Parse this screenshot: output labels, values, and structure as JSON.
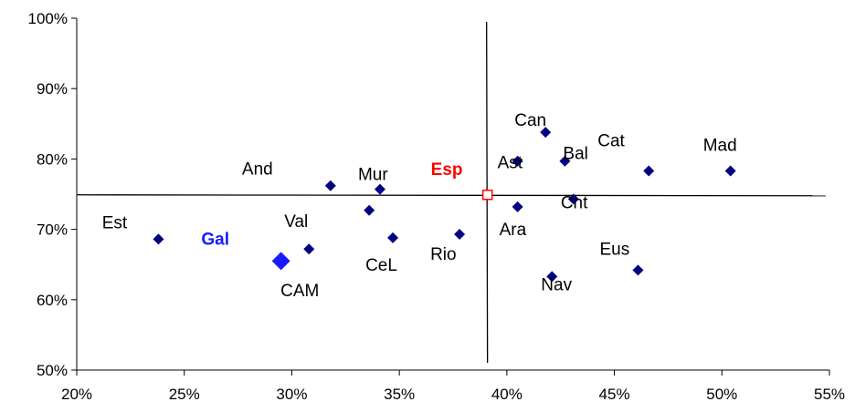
{
  "chart_data": {
    "type": "scatter",
    "title": "",
    "xlabel": "",
    "ylabel": "",
    "xlim": [
      0.2,
      0.55
    ],
    "ylim": [
      0.5,
      1.0
    ],
    "x_ticks": [
      {
        "value": 0.2,
        "label": "20%"
      },
      {
        "value": 0.25,
        "label": "25%"
      },
      {
        "value": 0.3,
        "label": "30%"
      },
      {
        "value": 0.35,
        "label": "35%"
      },
      {
        "value": 0.4,
        "label": "40%"
      },
      {
        "value": 0.45,
        "label": "45%"
      },
      {
        "value": 0.5,
        "label": "50%"
      },
      {
        "value": 0.55,
        "label": "55%"
      }
    ],
    "y_ticks": [
      {
        "value": 0.5,
        "label": "50%"
      },
      {
        "value": 0.6,
        "label": "60%"
      },
      {
        "value": 0.7,
        "label": "70%"
      },
      {
        "value": 0.8,
        "label": "80%"
      },
      {
        "value": 0.9,
        "label": "90%"
      },
      {
        "value": 1.0,
        "label": "100%"
      }
    ],
    "grid": false,
    "legend": "none",
    "reference_lines": {
      "x": 0.391,
      "y": 0.749
    },
    "colors": {
      "point": "#000080",
      "highlight_blue": "#1a1aff",
      "highlight_red": "#ff0000"
    },
    "points": [
      {
        "label": "Est",
        "x": 0.238,
        "y": 0.686
      },
      {
        "label": "Gal",
        "x": 0.295,
        "y": 0.655,
        "style": "blue"
      },
      {
        "label": "CAM",
        "x": 0.308,
        "y": 0.672
      },
      {
        "label": "Val",
        "x": 0.308,
        "y": 0.672,
        "point": false
      },
      {
        "label": "And",
        "x": 0.318,
        "y": 0.762
      },
      {
        "label": "Mur",
        "x": 0.341,
        "y": 0.757
      },
      {
        "label": "",
        "x": 0.336,
        "y": 0.727
      },
      {
        "label": "CeL",
        "x": 0.347,
        "y": 0.688
      },
      {
        "label": "Rio",
        "x": 0.378,
        "y": 0.693
      },
      {
        "label": "Esp",
        "x": 0.391,
        "y": 0.749,
        "style": "red"
      },
      {
        "label": "Ast",
        "x": 0.405,
        "y": 0.797
      },
      {
        "label": "Ara",
        "x": 0.405,
        "y": 0.732
      },
      {
        "label": "Can",
        "x": 0.418,
        "y": 0.838
      },
      {
        "label": "Nav",
        "x": 0.421,
        "y": 0.633
      },
      {
        "label": "Bal",
        "x": 0.427,
        "y": 0.797
      },
      {
        "label": "Cnt",
        "x": 0.431,
        "y": 0.743
      },
      {
        "label": "Eus",
        "x": 0.461,
        "y": 0.642
      },
      {
        "label": "Cat",
        "x": 0.466,
        "y": 0.783
      },
      {
        "label": "Mad",
        "x": 0.504,
        "y": 0.783
      }
    ]
  }
}
